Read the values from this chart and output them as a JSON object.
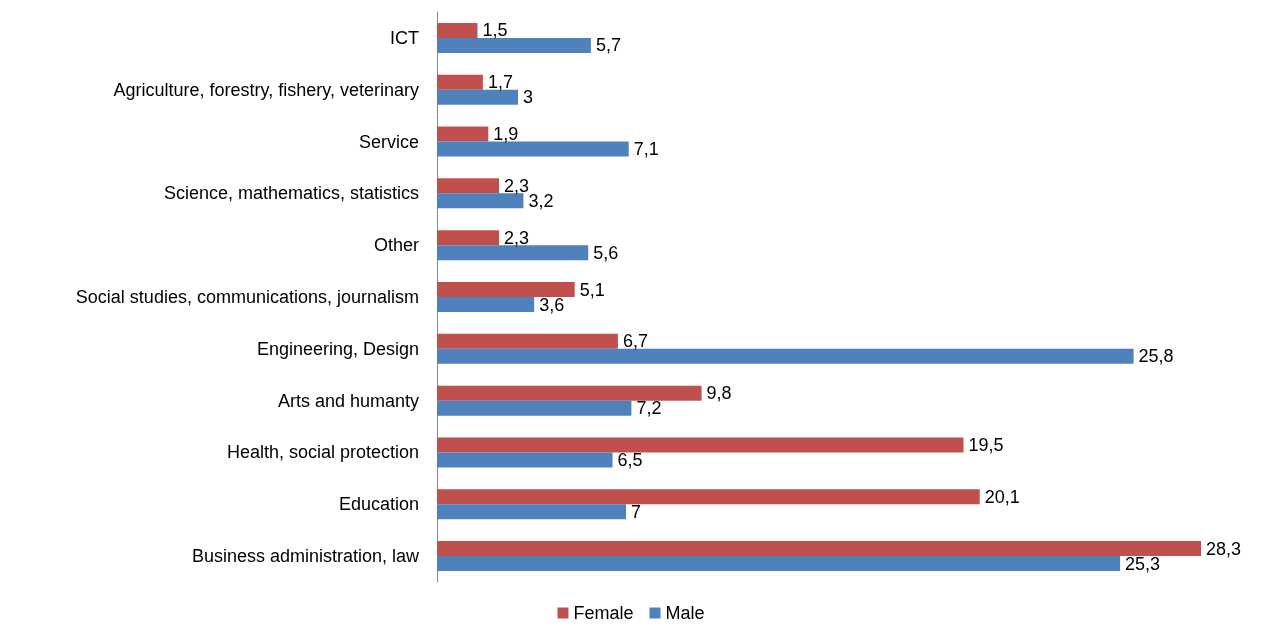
{
  "chart_data": {
    "type": "bar",
    "orientation": "horizontal",
    "legend": "bottom",
    "grid": false,
    "tick_labels": "y",
    "categories": [
      "ICT",
      "Agriculture, forestry, fishery, veterinary",
      "Service",
      "Science, mathematics, statistics",
      "Other",
      "Social studies, communications, journalism",
      "Engineering, Design",
      "Arts and humanty",
      "Health, social protection",
      "Education",
      "Business administration, law"
    ],
    "series": [
      {
        "name": "Female",
        "color": "#c0504d",
        "values": [
          1.5,
          1.7,
          1.9,
          2.3,
          2.3,
          5.1,
          6.7,
          9.8,
          19.5,
          20.1,
          28.3
        ],
        "value_labels": [
          "1,5",
          "1,7",
          "1,9",
          "2,3",
          "2,3",
          "5,1",
          "6,7",
          "9,8",
          "19,5",
          "20,1",
          "28,3"
        ]
      },
      {
        "name": "Male",
        "color": "#4f81bd",
        "values": [
          5.7,
          3,
          7.1,
          3.2,
          5.6,
          3.6,
          25.8,
          7.2,
          6.5,
          7,
          25.3
        ],
        "value_labels": [
          "5,7",
          "3",
          "7,1",
          "3,2",
          "5,6",
          "3,6",
          "25,8",
          "7,2",
          "6,5",
          "7",
          "25,3"
        ]
      }
    ]
  }
}
